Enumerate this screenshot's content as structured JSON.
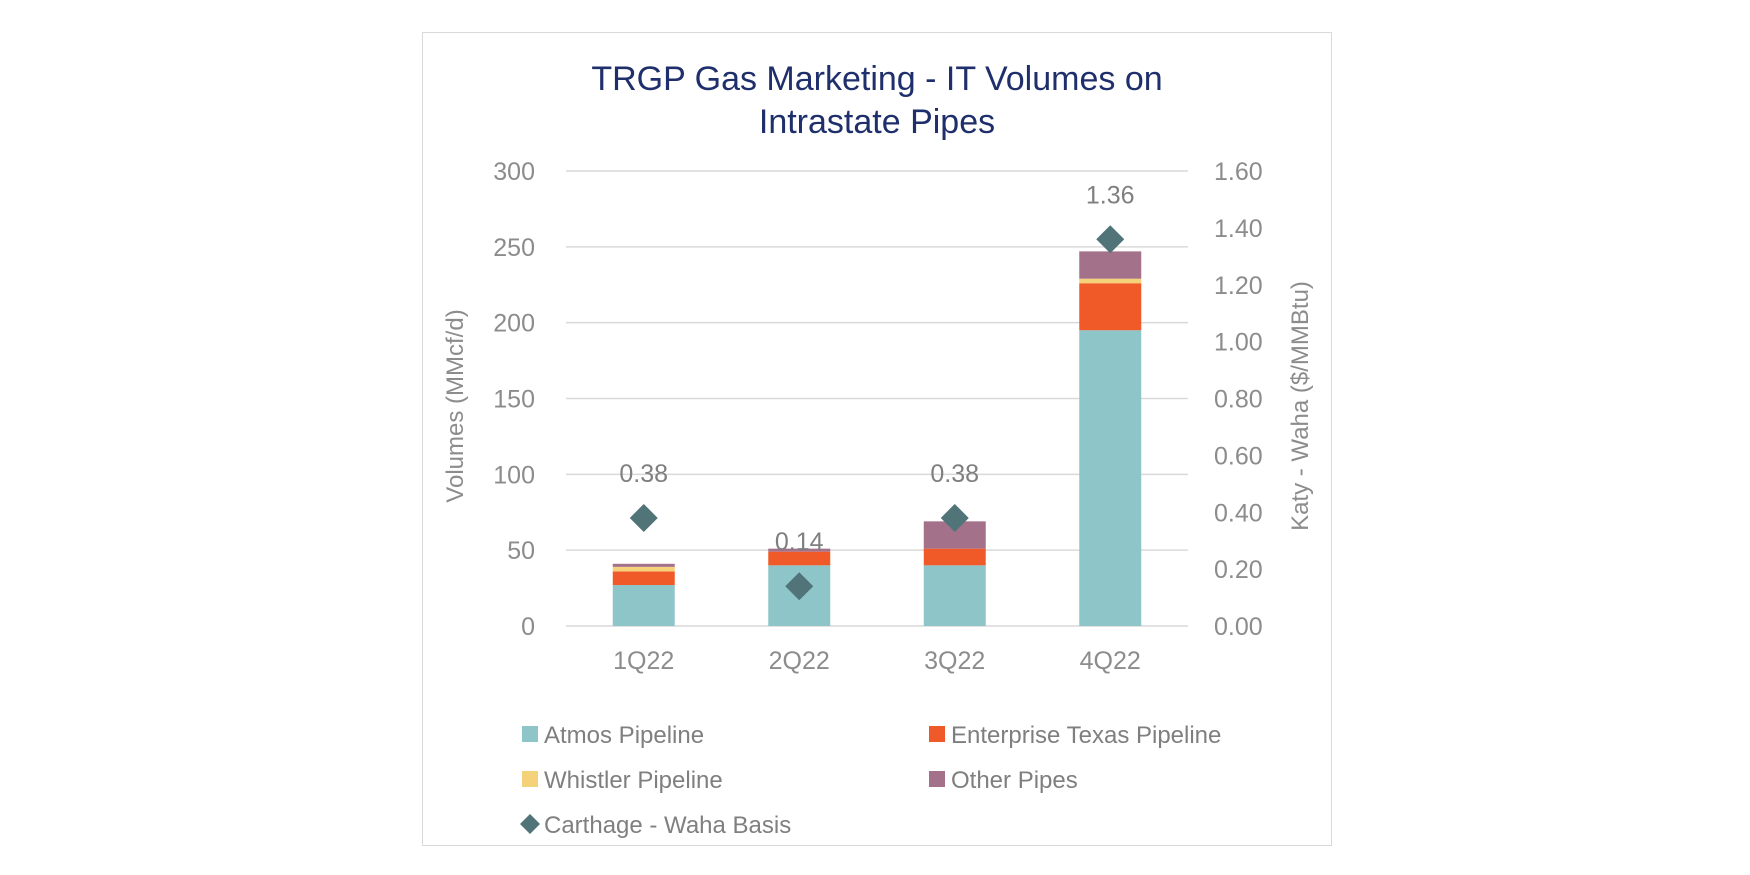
{
  "chart_data": {
    "type": "bar",
    "title": "TRGP Gas Marketing - IT Volumes on Intrastate Pipes",
    "title_lines": [
      "TRGP Gas Marketing - IT Volumes on",
      "Intrastate Pipes"
    ],
    "categories": [
      "1Q22",
      "2Q22",
      "3Q22",
      "4Q22"
    ],
    "stacked": true,
    "ylabel": "Volumes (MMcf/d)",
    "ylabel_right": "Katy - Waha ($/MMBtu)",
    "ylim": [
      0,
      300
    ],
    "ylim_right": [
      0,
      1.6
    ],
    "yticks": [
      "0",
      "50",
      "100",
      "150",
      "200",
      "250",
      "300"
    ],
    "yticks_right": [
      "0.00",
      "0.20",
      "0.40",
      "0.60",
      "0.80",
      "1.00",
      "1.20",
      "1.40",
      "1.60"
    ],
    "grid": true,
    "legend_position": "bottom",
    "series": [
      {
        "name": "Atmos Pipeline",
        "values": [
          27,
          40,
          40,
          195
        ],
        "color": "#8dc5c8",
        "axis": "left",
        "kind": "bar"
      },
      {
        "name": "Enterprise Texas Pipeline",
        "values": [
          9,
          9,
          11,
          31
        ],
        "color": "#f05a28",
        "axis": "left",
        "kind": "bar"
      },
      {
        "name": "Whistler Pipeline",
        "values": [
          3,
          0,
          0,
          3
        ],
        "color": "#f5d17a",
        "axis": "left",
        "kind": "bar"
      },
      {
        "name": "Other Pipes",
        "values": [
          2,
          2,
          18,
          18
        ],
        "color": "#a4718a",
        "axis": "left",
        "kind": "bar"
      },
      {
        "name": "Carthage - Waha Basis",
        "values": [
          0.38,
          0.14,
          0.38,
          1.36
        ],
        "labels": [
          "0.38",
          "0.14",
          "0.38",
          "1.36"
        ],
        "color": "#507478",
        "axis": "right",
        "kind": "marker"
      }
    ]
  }
}
